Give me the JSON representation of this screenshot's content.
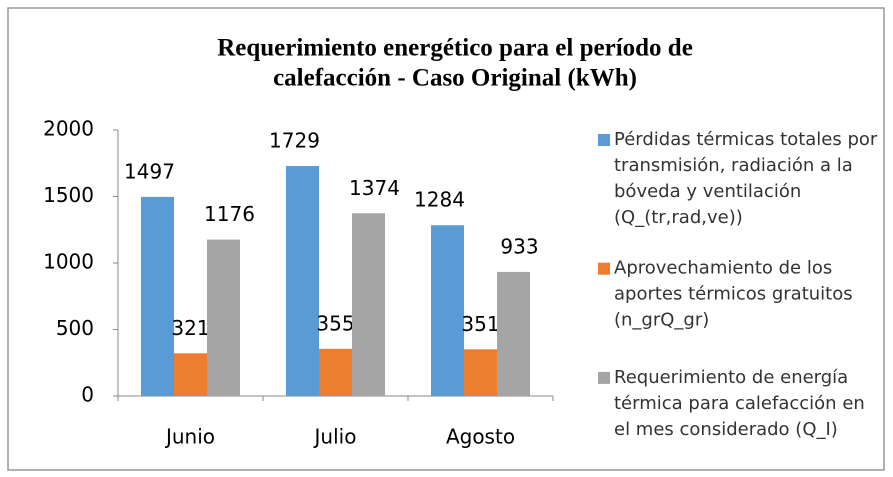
{
  "chart_data": {
    "type": "bar",
    "title": [
      "Requerimiento energético para el período de",
      "calefacción - Caso Original (kWh)"
    ],
    "categories": [
      "Junio",
      "Julio",
      "Agosto"
    ],
    "series": [
      {
        "name": "Pérdidas térmicas totales por transmisión, radiación a la bóveda y ventilación (Q_(tr,rad,ve))",
        "color": "#5b9bd5",
        "values": [
          1497,
          1729,
          1284
        ]
      },
      {
        "name": "Aprovechamiento de los aportes térmicos gratuitos (n_grQ_gr)",
        "color": "#ed7d31",
        "values": [
          321,
          355,
          351
        ]
      },
      {
        "name": "Requerimiento de energía térmica para calefacción en el mes considerado (Q_I)",
        "color": "#a5a5a5",
        "values": [
          1176,
          1374,
          933
        ]
      }
    ],
    "ylim": [
      0,
      2000
    ],
    "yticks": [
      0,
      500,
      1000,
      1500,
      2000
    ],
    "grid": false,
    "legend": "right"
  }
}
